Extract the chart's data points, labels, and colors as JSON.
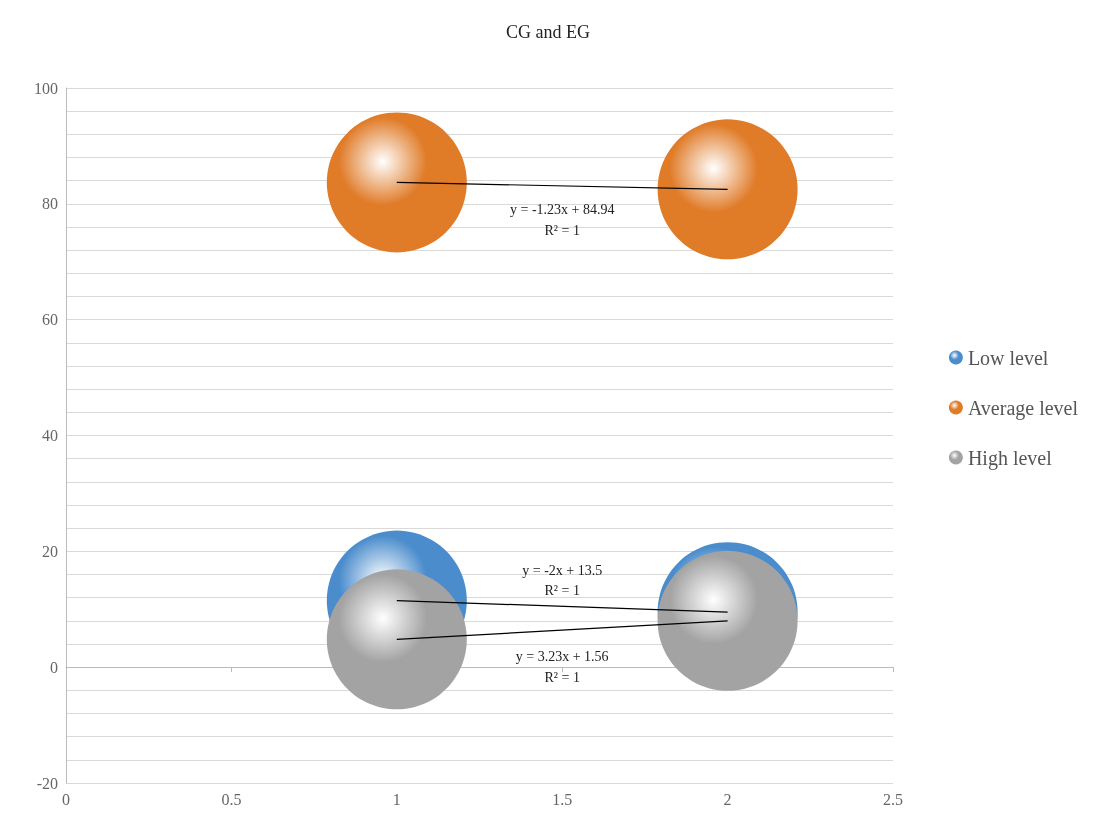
{
  "chart_data": {
    "type": "bubble",
    "title": "CG and EG",
    "x": [
      1,
      2
    ],
    "series": [
      {
        "name": "Low level",
        "color": "#4a8ccc",
        "values": [
          11.5,
          9.5
        ],
        "sizes": [
          1,
          1
        ]
      },
      {
        "name": "Average level",
        "color": "#e07b28",
        "values": [
          83.7,
          82.5
        ],
        "sizes": [
          1,
          1
        ]
      },
      {
        "name": "High level",
        "color": "#a3a3a3",
        "values": [
          4.8,
          8.0
        ],
        "sizes": [
          1,
          1
        ]
      },
      {
        "type": "line",
        "color": "#000000",
        "values": [
          83.7,
          82.5
        ],
        "marker": "none"
      },
      {
        "type": "line",
        "color": "#000000",
        "values": [
          11.5,
          9.5
        ],
        "marker": "none"
      },
      {
        "type": "line",
        "color": "#000000",
        "values": [
          4.8,
          8.0
        ],
        "marker": "none"
      }
    ],
    "annotations": [
      "y = -1.23x + 84.94",
      "R² = 1",
      "y = -2x + 13.5",
      "R² = 1",
      "y = 3.23x + 1.56",
      "R² = 1"
    ],
    "xlim": [
      0,
      2.5
    ],
    "xticks": [
      0,
      0.5,
      1,
      1.5,
      2,
      2.5
    ],
    "ylim": [
      -20,
      100
    ],
    "yticks": [
      -20,
      {
        "value": -16,
        "label": null
      },
      {
        "value": -12,
        "label": null
      },
      {
        "value": -8,
        "label": null
      },
      {
        "value": -4,
        "label": null
      },
      0,
      {
        "value": 4,
        "label": null
      },
      {
        "value": 8,
        "label": null
      },
      {
        "value": 12,
        "label": null
      },
      {
        "value": 16,
        "label": null
      },
      20,
      {
        "value": 24,
        "label": null
      },
      {
        "value": 28,
        "label": null
      },
      {
        "value": 32,
        "label": null
      },
      {
        "value": 36,
        "label": null
      },
      40,
      {
        "value": 44,
        "label": null
      },
      {
        "value": 48,
        "label": null
      },
      {
        "value": 52,
        "label": null
      },
      {
        "value": 56,
        "label": null
      },
      60,
      {
        "value": 64,
        "label": null
      },
      {
        "value": 68,
        "label": null
      },
      {
        "value": 72,
        "label": null
      },
      {
        "value": 76,
        "label": null
      },
      80,
      {
        "value": 84,
        "label": null
      },
      {
        "value": 88,
        "label": null
      },
      {
        "value": 92,
        "label": null
      },
      {
        "value": 96,
        "label": null
      },
      100
    ],
    "grid": "y",
    "legend": "right",
    "marker": "circle"
  }
}
